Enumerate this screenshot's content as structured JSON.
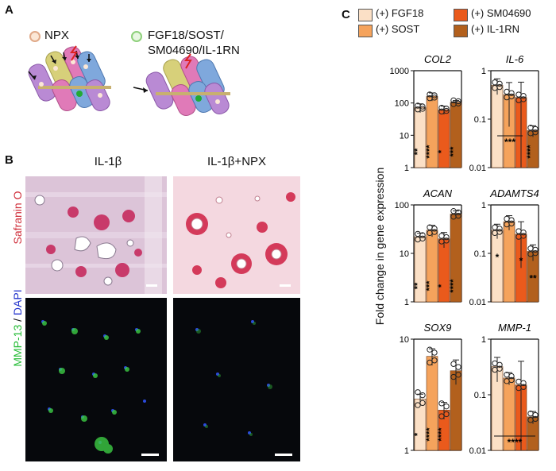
{
  "panel_a": {
    "label": "A",
    "legend_npx": "NPX",
    "legend_drugs_line1": "FGF18/SOST/",
    "legend_drugs_line2": "SM04690/IL-1RN"
  },
  "panel_b": {
    "label": "B",
    "col1": "IL-1β",
    "col2": "IL-1β+NPX",
    "row1": "Safranin O",
    "row2_a": "MMP-13",
    "row2_b": " / ",
    "row2_c": "DAPI"
  },
  "panel_c": {
    "label": "C",
    "ylabel": "Fold change in gene expression",
    "legend": [
      {
        "label": "(+) FGF18",
        "color": "#fbe0c6"
      },
      {
        "label": "(+) SOST",
        "color": "#f5a35c"
      },
      {
        "label": "(+) SM04690",
        "color": "#ea5a1c"
      },
      {
        "label": "(+) IL-1RN",
        "color": "#b2601d"
      }
    ]
  },
  "colors": {
    "fgf18": "#fbe0c6",
    "sost": "#f5a35c",
    "sm04690": "#ea5a1c",
    "il1rn": "#b2601d",
    "safranin": "#d0303c",
    "mmp13": "#22bb33",
    "dapi": "#2233cc"
  },
  "chart_data": [
    {
      "type": "bar",
      "title": "COL2",
      "scale": "log",
      "ylim": [
        1,
        1000
      ],
      "ticks": [
        "1",
        "10",
        "100",
        "1000"
      ],
      "categories": [
        "(+) FGF18",
        "(+) SOST",
        "(+) SM04690",
        "(+) IL-1RN"
      ],
      "values": [
        72,
        160,
        62,
        105
      ],
      "errors": [
        22,
        45,
        18,
        14
      ],
      "significance": [
        "**",
        "****",
        "*",
        "***"
      ],
      "sig_position": "bottom"
    },
    {
      "type": "bar",
      "title": "IL-6",
      "scale": "log",
      "ylim": [
        0.01,
        1
      ],
      "ticks": [
        "0.01",
        "0.1",
        "1"
      ],
      "categories": [
        "(+) FGF18",
        "(+) SOST",
        "(+) SM04690",
        "(+) IL-1RN"
      ],
      "values": [
        0.5,
        0.32,
        0.28,
        0.058
      ],
      "errors": [
        0.18,
        0.25,
        0.3,
        0.015
      ],
      "significance": [
        "***",
        "****"
      ],
      "sig_position": "bracket"
    },
    {
      "type": "bar",
      "title": "ACAN",
      "scale": "log",
      "ylim": [
        1,
        100
      ],
      "ticks": [
        "1",
        "10",
        "100"
      ],
      "categories": [
        "(+) FGF18",
        "(+) SOST",
        "(+) SM04690",
        "(+) IL-1RN"
      ],
      "values": [
        22,
        30,
        20,
        65
      ],
      "errors": [
        4,
        8,
        7,
        10
      ],
      "significance": [
        "**",
        "***",
        "*",
        "****"
      ],
      "sig_position": "bottom"
    },
    {
      "type": "bar",
      "title": "ADAMTS4",
      "scale": "log",
      "ylim": [
        0.01,
        1
      ],
      "ticks": [
        "0.01",
        "0.1",
        "1"
      ],
      "categories": [
        "(+) FGF18",
        "(+) SOST",
        "(+) SM04690",
        "(+) IL-1RN"
      ],
      "values": [
        0.3,
        0.45,
        0.25,
        0.11
      ],
      "errors": [
        0.1,
        0.15,
        0.2,
        0.04
      ],
      "significance": [
        "*",
        "*",
        "**"
      ],
      "sig_position": "below-bar"
    },
    {
      "type": "bar",
      "title": "SOX9",
      "scale": "log",
      "ylim": [
        1,
        10
      ],
      "ticks": [
        "1",
        "10"
      ],
      "categories": [
        "(+) FGF18",
        "(+) SOST",
        "(+) SM04690",
        "(+) IL-1RN"
      ],
      "values": [
        2.9,
        7.0,
        2.3,
        5.2
      ],
      "errors": [
        0.3,
        1.2,
        0.4,
        1.3
      ],
      "significance": [
        "*",
        "****",
        "****"
      ],
      "sig_position": "bottom"
    },
    {
      "type": "bar",
      "title": "MMP-1",
      "scale": "log",
      "ylim": [
        0.01,
        1
      ],
      "ticks": [
        "0.01",
        "0.1",
        "1"
      ],
      "categories": [
        "(+) FGF18",
        "(+) SOST",
        "(+) SM04690",
        "(+) IL-1RN"
      ],
      "values": [
        0.32,
        0.2,
        0.15,
        0.04
      ],
      "errors": [
        0.15,
        0.05,
        0.25,
        0.01
      ],
      "significance": [
        "****"
      ],
      "sig_position": "bracket"
    }
  ]
}
